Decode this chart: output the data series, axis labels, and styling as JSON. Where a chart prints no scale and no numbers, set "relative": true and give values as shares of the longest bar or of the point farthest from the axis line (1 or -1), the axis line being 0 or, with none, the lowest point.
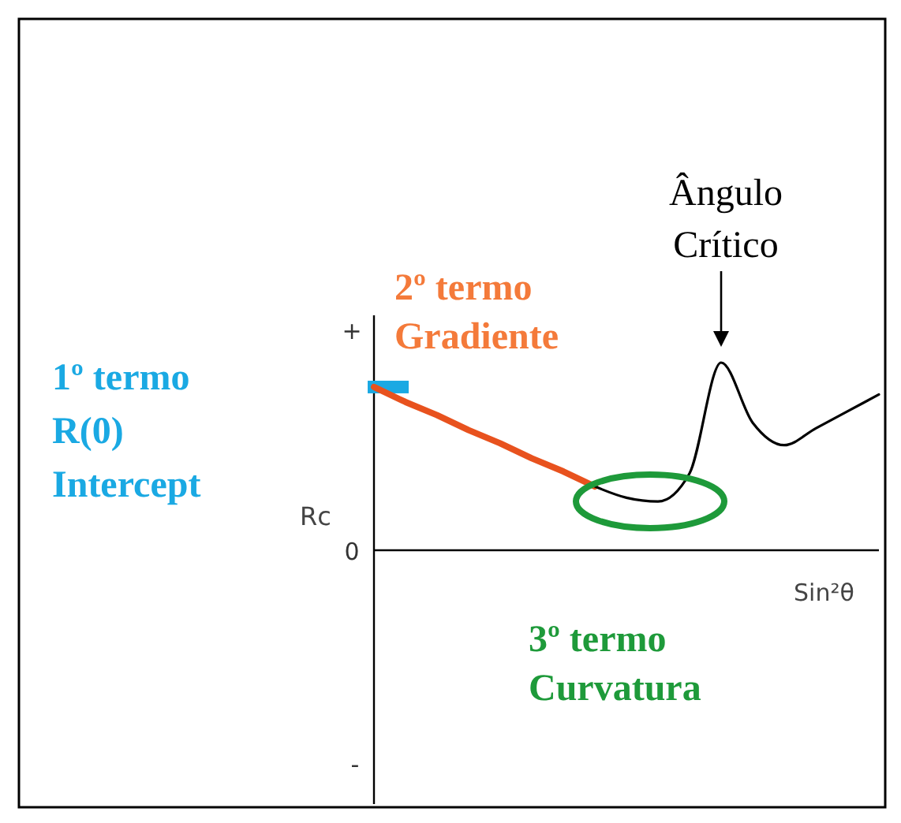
{
  "chart_data": {
    "type": "line",
    "relative": true,
    "xlabel": "Sin²θ",
    "ylabel": "Rc",
    "categories": [
      null,
      null,
      null,
      null,
      null,
      null,
      null,
      null,
      null,
      null,
      null,
      null,
      null,
      null,
      null,
      null,
      null
    ],
    "series": [
      {
        "color": "#e8521e",
        "values": [
          0.87,
          0.79,
          0.72,
          0.64,
          0.57,
          0.49,
          0.42,
          0.34,
          null,
          null,
          null,
          null,
          null,
          null,
          null,
          null,
          null
        ]
      },
      {
        "color": "#000000",
        "values": [
          null,
          null,
          null,
          null,
          null,
          null,
          null,
          0.34,
          0.28,
          0.26,
          0.41,
          1.0,
          0.68,
          0.56,
          0.65,
          0.74,
          0.83
        ]
      }
    ],
    "annotations": [
      "1º termo\nR(0)\nIntercept",
      "2º termo\nGradiente",
      "Ângulo\nCrítico",
      "3º termo\nCurvatura",
      "+",
      "0",
      "-"
    ]
  }
}
